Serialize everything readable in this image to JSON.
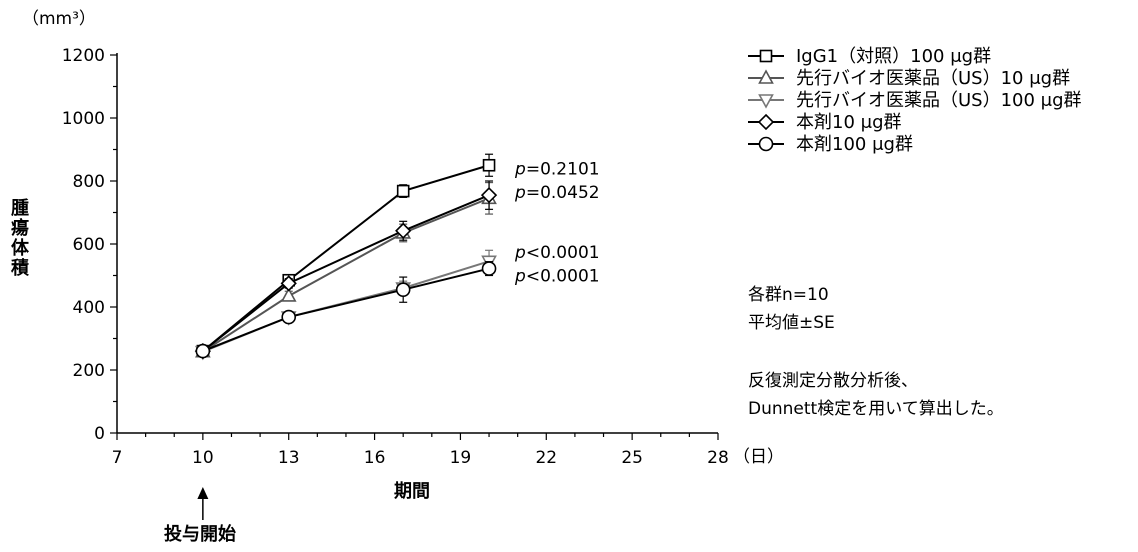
{
  "chart_data": {
    "type": "line",
    "unit_label": "（mm³）",
    "xlabel": "期間",
    "ylabel": [
      "腫",
      "瘍",
      "体",
      "積"
    ],
    "x_unit": "（日）",
    "xlim": [
      7,
      28
    ],
    "ylim": [
      0,
      1200
    ],
    "xticks": [
      7,
      10,
      13,
      16,
      19,
      22,
      25,
      28
    ],
    "yticks": [
      0,
      200,
      400,
      600,
      800,
      1000,
      1200
    ],
    "x": [
      10,
      13,
      17,
      20
    ],
    "series": [
      {
        "name": "IgG1（対照）100 μg群",
        "marker": "square",
        "color": "#000000",
        "values": [
          260,
          485,
          768,
          850
        ],
        "errors": [
          12,
          15,
          20,
          35
        ]
      },
      {
        "name": "先行バイオ医薬品（US）10 μg群",
        "marker": "triangle-up",
        "color": "#555555",
        "values": [
          258,
          435,
          635,
          745
        ],
        "errors": [
          12,
          15,
          28,
          50
        ]
      },
      {
        "name": "先行バイオ医薬品（US）100 μg群",
        "marker": "triangle-down",
        "color": "#777777",
        "values": [
          258,
          368,
          460,
          545
        ],
        "errors": [
          12,
          12,
          22,
          35
        ]
      },
      {
        "name": "本剤10 μg群",
        "marker": "diamond",
        "color": "#000000",
        "values": [
          260,
          475,
          642,
          755
        ],
        "errors": [
          12,
          15,
          30,
          45
        ]
      },
      {
        "name": "本剤100 μg群",
        "marker": "circle",
        "color": "#000000",
        "values": [
          260,
          368,
          455,
          522
        ],
        "errors": [
          12,
          10,
          40,
          22
        ]
      }
    ],
    "annotations": [
      {
        "prefix": "p",
        "text": "=0.2101",
        "y": 840
      },
      {
        "prefix": "p",
        "text": "=0.0452",
        "y": 765
      },
      {
        "prefix": "p",
        "text": "<0.0001",
        "y": 575
      },
      {
        "prefix": "p",
        "text": "<0.0001",
        "y": 500
      }
    ],
    "legend_position": "top-right",
    "dosing_label": "投与開始",
    "dosing_x": 10,
    "notes": [
      "各群n=10",
      "平均値±SE",
      "",
      "反復測定分散分析後、",
      "Dunnett検定を用いて算出した。"
    ]
  }
}
